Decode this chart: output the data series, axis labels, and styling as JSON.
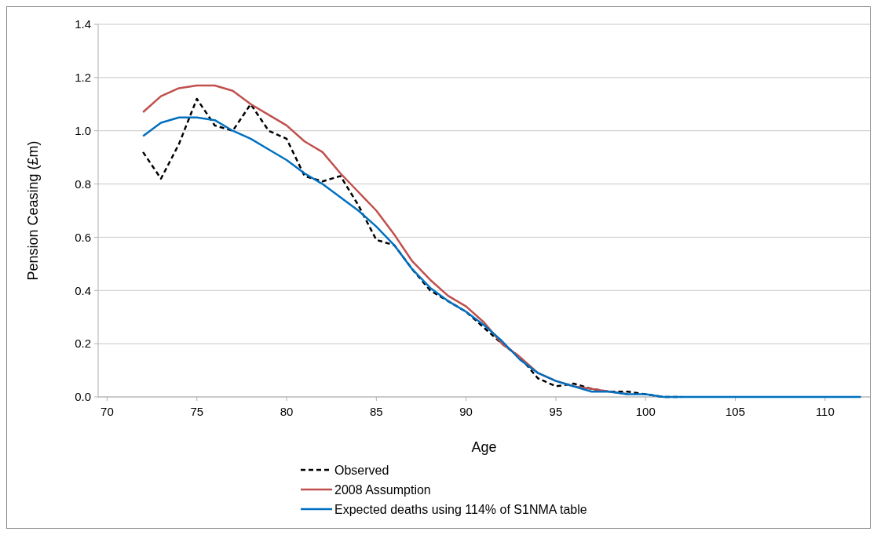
{
  "chart_data": {
    "type": "line",
    "xlabel": "Age",
    "ylabel": "Pension Ceasing (£m)",
    "x": [
      72,
      73,
      74,
      75,
      76,
      77,
      78,
      79,
      80,
      81,
      82,
      83,
      84,
      85,
      86,
      87,
      88,
      89,
      90,
      91,
      92,
      93,
      94,
      95,
      96,
      97,
      98,
      99,
      100,
      101,
      102,
      103,
      104,
      105,
      106,
      107,
      108,
      109,
      110,
      111,
      112
    ],
    "series": [
      {
        "name": "Observed",
        "color": "#000000",
        "line_style": "dashed",
        "values": [
          0.92,
          0.82,
          0.95,
          1.12,
          1.02,
          1.0,
          1.1,
          1.0,
          0.97,
          0.83,
          0.81,
          0.83,
          0.72,
          0.59,
          0.57,
          0.48,
          0.4,
          0.36,
          0.32,
          0.26,
          0.2,
          0.15,
          0.07,
          0.04,
          0.05,
          0.03,
          0.02,
          0.02,
          0.01,
          0,
          0,
          null,
          null,
          null,
          null,
          null,
          null,
          null,
          null,
          null,
          null
        ]
      },
      {
        "name": "2008 Assumption",
        "color": "#c0504d",
        "line_style": "solid",
        "values": [
          1.07,
          1.13,
          1.16,
          1.17,
          1.17,
          1.15,
          1.1,
          1.06,
          1.02,
          0.96,
          0.92,
          0.84,
          0.77,
          0.7,
          0.61,
          0.51,
          0.44,
          0.38,
          0.34,
          0.28,
          0.2,
          0.15,
          0.09,
          0.06,
          0.04,
          0.03,
          0.02,
          0.01,
          null,
          null,
          null,
          null,
          null,
          null,
          null,
          null,
          null,
          null,
          null,
          null,
          null
        ]
      },
      {
        "name": "Expected deaths using 114% of S1NMA table",
        "color": "#0070c0",
        "line_style": "solid",
        "values": [
          0.98,
          1.03,
          1.05,
          1.05,
          1.04,
          1.0,
          0.97,
          0.93,
          0.89,
          0.84,
          0.8,
          0.75,
          0.7,
          0.64,
          0.57,
          0.48,
          0.41,
          0.36,
          0.32,
          0.27,
          0.21,
          0.14,
          0.09,
          0.06,
          0.04,
          0.02,
          0.02,
          0.01,
          0.01,
          0,
          0,
          0,
          0,
          0,
          0,
          0,
          0,
          0,
          0,
          0,
          0
        ]
      }
    ],
    "xlim": [
      69.5,
      112.5
    ],
    "xticks": [
      70,
      75,
      80,
      85,
      90,
      95,
      100,
      105,
      110
    ],
    "ylim": [
      0,
      1.4
    ],
    "yticks": [
      {
        "value": 0,
        "label": "0.0"
      },
      {
        "value": 0.2,
        "label": "0.2"
      },
      {
        "value": 0.4,
        "label": "0.4"
      },
      {
        "value": 0.6,
        "label": "0.6"
      },
      {
        "value": 0.8,
        "label": "0.8"
      },
      {
        "value": 1.0,
        "label": "1.0"
      },
      {
        "value": 1.2,
        "label": "1.2"
      },
      {
        "value": 1.4,
        "label": "1.4"
      }
    ],
    "grid": "y",
    "legend": "bottom",
    "marker": "none"
  }
}
